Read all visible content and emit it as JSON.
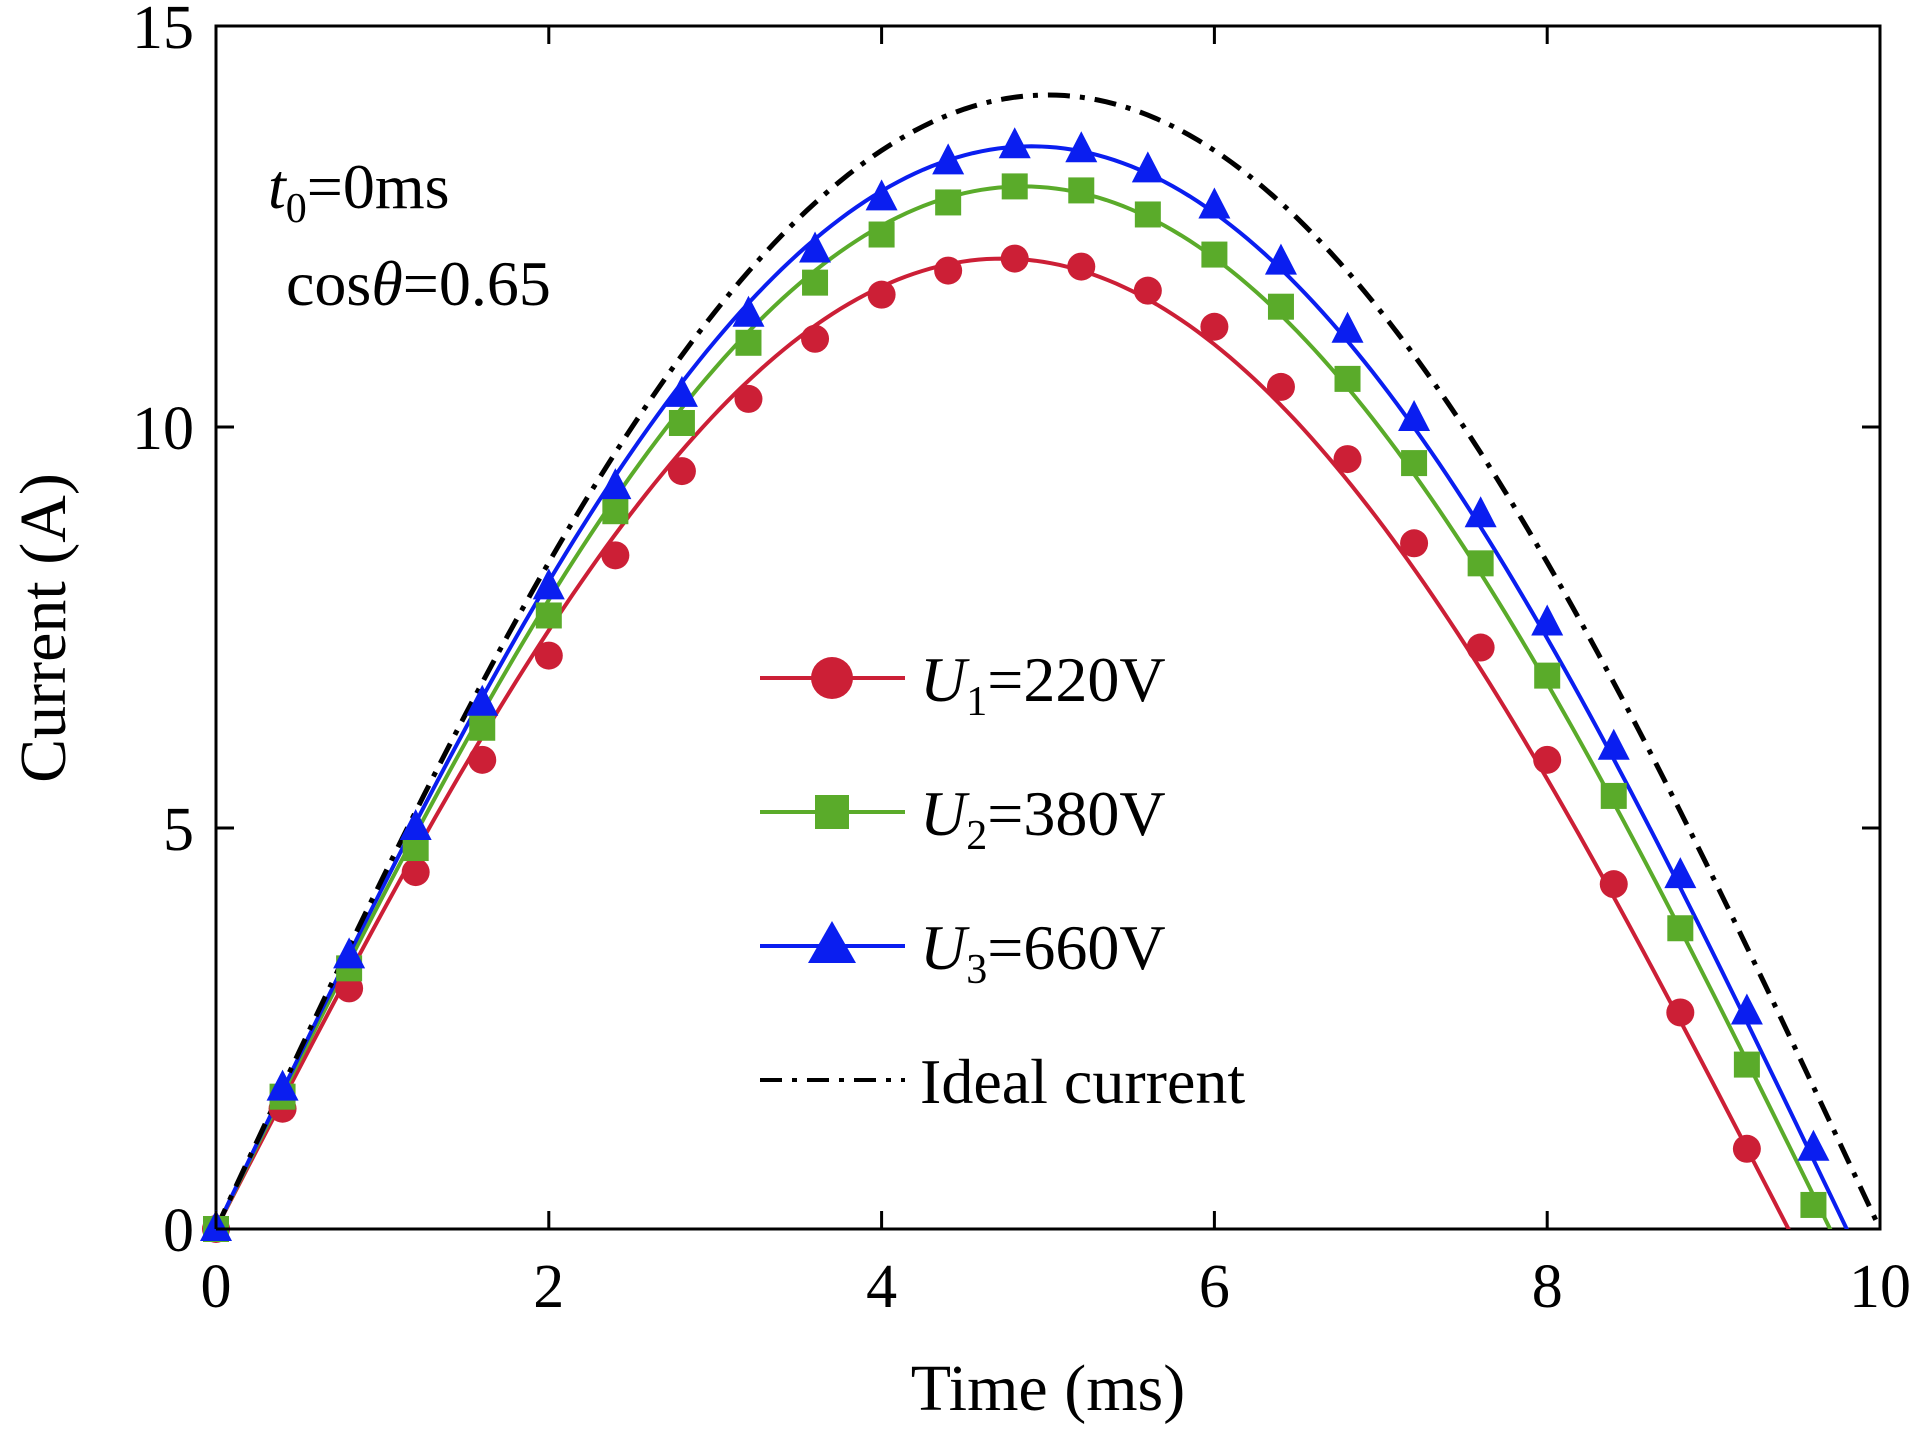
{
  "chart_data": {
    "type": "line",
    "title": "",
    "xlabel": "Time (ms)",
    "ylabel": "Current (A)",
    "xlim": [
      0,
      10
    ],
    "ylim": [
      0,
      15
    ],
    "xticks": [
      0,
      2,
      4,
      6,
      8,
      10
    ],
    "yticks": [
      0,
      5,
      10,
      15
    ],
    "xtick_labels": [
      "0",
      "2",
      "4",
      "6",
      "8",
      "10"
    ],
    "ytick_labels": [
      "0",
      "5",
      "10",
      "15"
    ],
    "grid": false,
    "legend_position": "center",
    "annotations": {
      "t0_sym": "t",
      "t0_sub": "0",
      "t0_val": "=0ms",
      "cos_pre": "cos",
      "cos_sym": "θ",
      "cos_val": "=0.65"
    },
    "series": [
      {
        "name": "U1=220V",
        "legend_sym": "U",
        "legend_sub": "1",
        "legend_val": "=220V",
        "color": "#cc1f36",
        "marker": "circle",
        "peak": 12.1,
        "zero": 9.45,
        "x": [
          0,
          0.4,
          0.8,
          1.2,
          1.6,
          2.0,
          2.4,
          2.8,
          3.2,
          3.6,
          4.0,
          4.4,
          4.8,
          5.2,
          5.6,
          6.0,
          6.4,
          6.8,
          7.2,
          7.6,
          8.0,
          8.4,
          8.8,
          9.2
        ],
        "values": [
          0,
          1.5,
          3.0,
          4.45,
          5.85,
          7.15,
          8.4,
          9.45,
          10.35,
          11.1,
          11.65,
          11.95,
          12.1,
          12.0,
          11.7,
          11.25,
          10.5,
          9.6,
          8.55,
          7.25,
          5.85,
          4.3,
          2.7,
          1.0
        ]
      },
      {
        "name": "U2=380V",
        "legend_sym": "U",
        "legend_sub": "2",
        "legend_val": "=380V",
        "color": "#5aab2a",
        "marker": "square",
        "peak": 13.0,
        "zero": 9.7,
        "x": [
          0,
          0.4,
          0.8,
          1.2,
          1.6,
          2.0,
          2.4,
          2.8,
          3.2,
          3.6,
          4.0,
          4.4,
          4.8,
          5.2,
          5.6,
          6.0,
          6.4,
          6.8,
          7.2,
          7.6,
          8.0,
          8.4,
          8.8,
          9.2,
          9.6
        ],
        "values": [
          0,
          1.65,
          3.25,
          4.75,
          6.25,
          7.65,
          8.95,
          10.05,
          11.05,
          11.8,
          12.4,
          12.8,
          13.0,
          12.95,
          12.65,
          12.15,
          11.5,
          10.6,
          9.55,
          8.3,
          6.9,
          5.4,
          3.75,
          2.05,
          0.3
        ]
      },
      {
        "name": "U3=660V",
        "legend_sym": "U",
        "legend_sub": "3",
        "legend_val": "=660V",
        "color": "#0a1ef0",
        "marker": "triangle",
        "peak": 13.5,
        "zero": 9.8,
        "x": [
          0,
          0.4,
          0.8,
          1.2,
          1.6,
          2.0,
          2.4,
          2.8,
          3.2,
          3.6,
          4.0,
          4.4,
          4.8,
          5.2,
          5.6,
          6.0,
          6.4,
          6.8,
          7.2,
          7.6,
          8.0,
          8.4,
          8.8,
          9.2,
          9.6
        ],
        "values": [
          0,
          1.75,
          3.4,
          5.0,
          6.55,
          8.0,
          9.25,
          10.4,
          11.4,
          12.2,
          12.85,
          13.3,
          13.5,
          13.45,
          13.2,
          12.75,
          12.05,
          11.2,
          10.1,
          8.9,
          7.55,
          6.0,
          4.4,
          2.7,
          1.0
        ]
      },
      {
        "name": "Ideal current",
        "color": "#000000",
        "marker": "none",
        "dash": "dashdot",
        "peak": 14.14,
        "zero": 10.0
      }
    ]
  }
}
